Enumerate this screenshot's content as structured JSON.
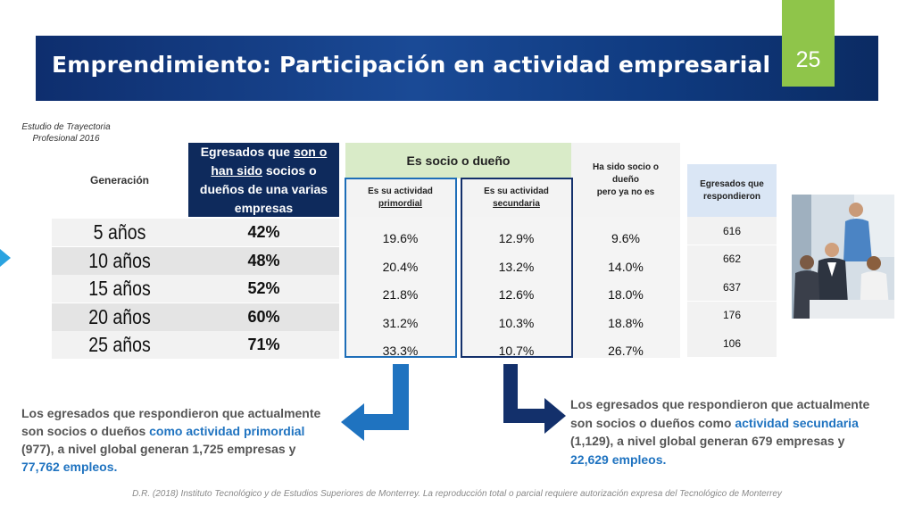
{
  "header": {
    "title": "Emprendimiento: Participación en actividad empresarial",
    "page_number": "25"
  },
  "study_label": [
    "Estudio de Trayectoria",
    "Profesional 2016"
  ],
  "table": {
    "gen_header": "Generación",
    "participation_header": {
      "pre": "Egresados que ",
      "u1": "son o",
      "u2": "han sido",
      "post": " socios o dueños de una varias empresas"
    },
    "socio_header": "Es socio o dueño",
    "sub_primordial": [
      "Es su actividad",
      "primordial"
    ],
    "sub_secundaria": [
      "Es su actividad",
      "secundaria"
    ],
    "ha_sido_header": [
      "Ha sido socio o",
      "dueño",
      "pero ya no es"
    ],
    "respondents_header": [
      "Egresados que",
      "respondieron"
    ],
    "rows": [
      {
        "gen": "5 años",
        "pct": "42%",
        "primordial": "19.6%",
        "secundaria": "12.9%",
        "ha_sido": "9.6%",
        "resp": "616"
      },
      {
        "gen": "10 años",
        "pct": "48%",
        "primordial": "20.4%",
        "secundaria": "13.2%",
        "ha_sido": "14.0%",
        "resp": "662"
      },
      {
        "gen": "15 años",
        "pct": "52%",
        "primordial": "21.8%",
        "secundaria": "12.6%",
        "ha_sido": "18.0%",
        "resp": "637"
      },
      {
        "gen": "20 años",
        "pct": "60%",
        "primordial": "31.2%",
        "secundaria": "10.3%",
        "ha_sido": "18.8%",
        "resp": "176"
      },
      {
        "gen": "25 años",
        "pct": "71%",
        "primordial": "33.3%",
        "secundaria": "10.7%",
        "ha_sido": "26.7%",
        "resp": "106"
      }
    ]
  },
  "note_left": {
    "a": "Los egresados que respondieron que actualmente son socios o dueños ",
    "b": "como actividad primordial",
    "c": " (977), a nivel global generan 1,725 empresas y ",
    "d": "77,762 empleos."
  },
  "note_right": {
    "a": "Los egresados que respondieron que actualmente son socios o dueños como ",
    "b": "actividad secundaria",
    "c": " (1,129), a nivel global generan 679 empresas y ",
    "d": "22,629 empleos."
  },
  "footer": "D.R. (2018) Instituto Tecnológico y de Estudios Superiores de Monterrey. La reproducción total o parcial requiere autorización expresa del Tecnológico de Monterrey",
  "colors": {
    "banner": "#0e2e6e",
    "accent_green": "#8fc54a",
    "highlight_blue": "#1f73c0",
    "dark_navy": "#13306b"
  },
  "icons": {
    "left_arrow": "arrow-down-left-icon",
    "right_arrow": "arrow-down-right-icon",
    "photo": "business-team-photo"
  }
}
